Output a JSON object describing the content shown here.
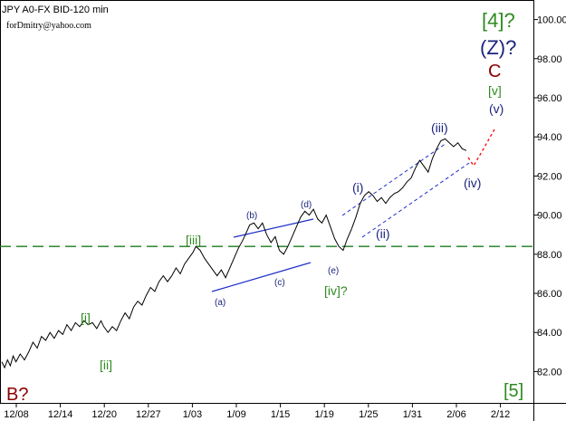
{
  "header": {
    "symbol": "JPY A0-FX BID-120 min",
    "author": "forDmitry@yahoo.com"
  },
  "colors": {
    "price": "#000000",
    "green": "#2e8b20",
    "navy": "#1a237e",
    "dark_red": "#8b0000",
    "blue_line": "#1e2fc8",
    "dashed_green": "#1f7a1f",
    "projection": "#ff0000"
  },
  "chart_data": {
    "type": "line",
    "title": "",
    "xlabel": "",
    "ylabel": "",
    "ylim": [
      80.4,
      101.0
    ],
    "y_ticks": [
      82.0,
      84.0,
      86.0,
      88.0,
      90.0,
      92.0,
      94.0,
      96.0,
      98.0,
      100.0
    ],
    "y_tick_labels": [
      "82.00",
      "84.00",
      "86.00",
      "88.00",
      "90.00",
      "92.00",
      "94.00",
      "96.00",
      "98.00",
      "100.00"
    ],
    "x_tick_labels": [
      "12/08",
      "12/14",
      "12/20",
      "12/27",
      "1/03",
      "1/09",
      "1/15",
      "1/19",
      "1/25",
      "1/31",
      "2/06",
      "2/12"
    ],
    "grid": false,
    "series": [
      {
        "values": [
          [
            0,
            82.5
          ],
          [
            2,
            82.2
          ],
          [
            4,
            82.6
          ],
          [
            6,
            82.3
          ],
          [
            8,
            82.8
          ],
          [
            10,
            82.5
          ],
          [
            13,
            82.9
          ],
          [
            16,
            82.6
          ],
          [
            19,
            83.0
          ],
          [
            22,
            83.5
          ],
          [
            25,
            83.2
          ],
          [
            28,
            83.8
          ],
          [
            31,
            83.6
          ],
          [
            34,
            84.0
          ],
          [
            37,
            83.7
          ],
          [
            40,
            84.1
          ],
          [
            43,
            83.9
          ],
          [
            46,
            84.4
          ],
          [
            49,
            84.1
          ],
          [
            52,
            84.5
          ],
          [
            55,
            84.3
          ],
          [
            58,
            84.6
          ],
          [
            61,
            84.4
          ],
          [
            64,
            84.5
          ],
          [
            67,
            84.2
          ],
          [
            70,
            84.6
          ],
          [
            72,
            84.3
          ],
          [
            75,
            84.0
          ],
          [
            78,
            84.3
          ],
          [
            81,
            84.1
          ],
          [
            84,
            84.6
          ],
          [
            87,
            85.0
          ],
          [
            90,
            84.7
          ],
          [
            93,
            85.3
          ],
          [
            96,
            85.6
          ],
          [
            99,
            85.4
          ],
          [
            102,
            85.9
          ],
          [
            105,
            86.3
          ],
          [
            108,
            86.1
          ],
          [
            111,
            86.6
          ],
          [
            114,
            86.9
          ],
          [
            117,
            86.6
          ],
          [
            120,
            86.9
          ],
          [
            123,
            87.3
          ],
          [
            126,
            87.0
          ],
          [
            129,
            87.5
          ],
          [
            132,
            87.8
          ],
          [
            135,
            88.1
          ],
          [
            137,
            88.4
          ],
          [
            140,
            88.2
          ],
          [
            143,
            87.8
          ],
          [
            146,
            87.5
          ],
          [
            149,
            87.2
          ],
          [
            152,
            86.9
          ],
          [
            155,
            87.2
          ],
          [
            158,
            86.8
          ],
          [
            161,
            87.3
          ],
          [
            164,
            87.8
          ],
          [
            167,
            88.3
          ],
          [
            170,
            88.7
          ],
          [
            172,
            89.0
          ],
          [
            175,
            89.5
          ],
          [
            178,
            89.6
          ],
          [
            181,
            89.3
          ],
          [
            184,
            89.6
          ],
          [
            187,
            89.0
          ],
          [
            190,
            88.6
          ],
          [
            193,
            88.9
          ],
          [
            196,
            88.2
          ],
          [
            199,
            88.0
          ],
          [
            202,
            88.4
          ],
          [
            205,
            88.9
          ],
          [
            208,
            89.4
          ],
          [
            211,
            89.9
          ],
          [
            214,
            90.2
          ],
          [
            217,
            90.0
          ],
          [
            220,
            90.3
          ],
          [
            223,
            89.8
          ],
          [
            226,
            89.6
          ],
          [
            229,
            90.0
          ],
          [
            232,
            89.4
          ],
          [
            235,
            88.8
          ],
          [
            238,
            88.4
          ],
          [
            241,
            88.2
          ],
          [
            244,
            88.8
          ],
          [
            247,
            89.3
          ],
          [
            250,
            89.9
          ],
          [
            253,
            90.6
          ],
          [
            256,
            91.0
          ],
          [
            259,
            91.2
          ],
          [
            262,
            91.0
          ],
          [
            265,
            90.7
          ],
          [
            268,
            90.9
          ],
          [
            271,
            90.6
          ],
          [
            274,
            90.9
          ],
          [
            277,
            91.1
          ],
          [
            280,
            91.2
          ],
          [
            283,
            91.4
          ],
          [
            286,
            91.7
          ],
          [
            289,
            91.9
          ],
          [
            292,
            92.4
          ],
          [
            295,
            92.8
          ],
          [
            298,
            92.5
          ],
          [
            301,
            92.2
          ],
          [
            304,
            92.9
          ],
          [
            307,
            93.4
          ],
          [
            310,
            93.8
          ],
          [
            313,
            93.9
          ],
          [
            316,
            93.7
          ],
          [
            319,
            93.5
          ],
          [
            322,
            93.7
          ],
          [
            325,
            93.4
          ],
          [
            328,
            93.3
          ]
        ]
      }
    ],
    "wave_labels": [
      {
        "text": "[4]?",
        "color": "green"
      },
      {
        "text": "(Z)?",
        "color": "navy"
      },
      {
        "text": "C",
        "color": "dark_red"
      },
      {
        "text": "[v]",
        "color": "green"
      },
      {
        "text": "(v)",
        "color": "navy"
      },
      {
        "text": "(iii)",
        "color": "navy"
      },
      {
        "text": "(iv)",
        "color": "navy"
      },
      {
        "text": "(i)",
        "color": "navy"
      },
      {
        "text": "(ii)",
        "color": "navy"
      },
      {
        "text": "(d)",
        "color": "navy"
      },
      {
        "text": "(b)",
        "color": "navy"
      },
      {
        "text": "[iii]",
        "color": "green"
      },
      {
        "text": "(c)",
        "color": "navy"
      },
      {
        "text": "(e)",
        "color": "navy"
      },
      {
        "text": "[iv]?",
        "color": "green"
      },
      {
        "text": "(a)",
        "color": "navy"
      },
      {
        "text": "[i]",
        "color": "green"
      },
      {
        "text": "[ii]",
        "color": "green"
      },
      {
        "text": "B?",
        "color": "dark_red"
      },
      {
        "text": "[5]",
        "color": "green"
      }
    ]
  }
}
